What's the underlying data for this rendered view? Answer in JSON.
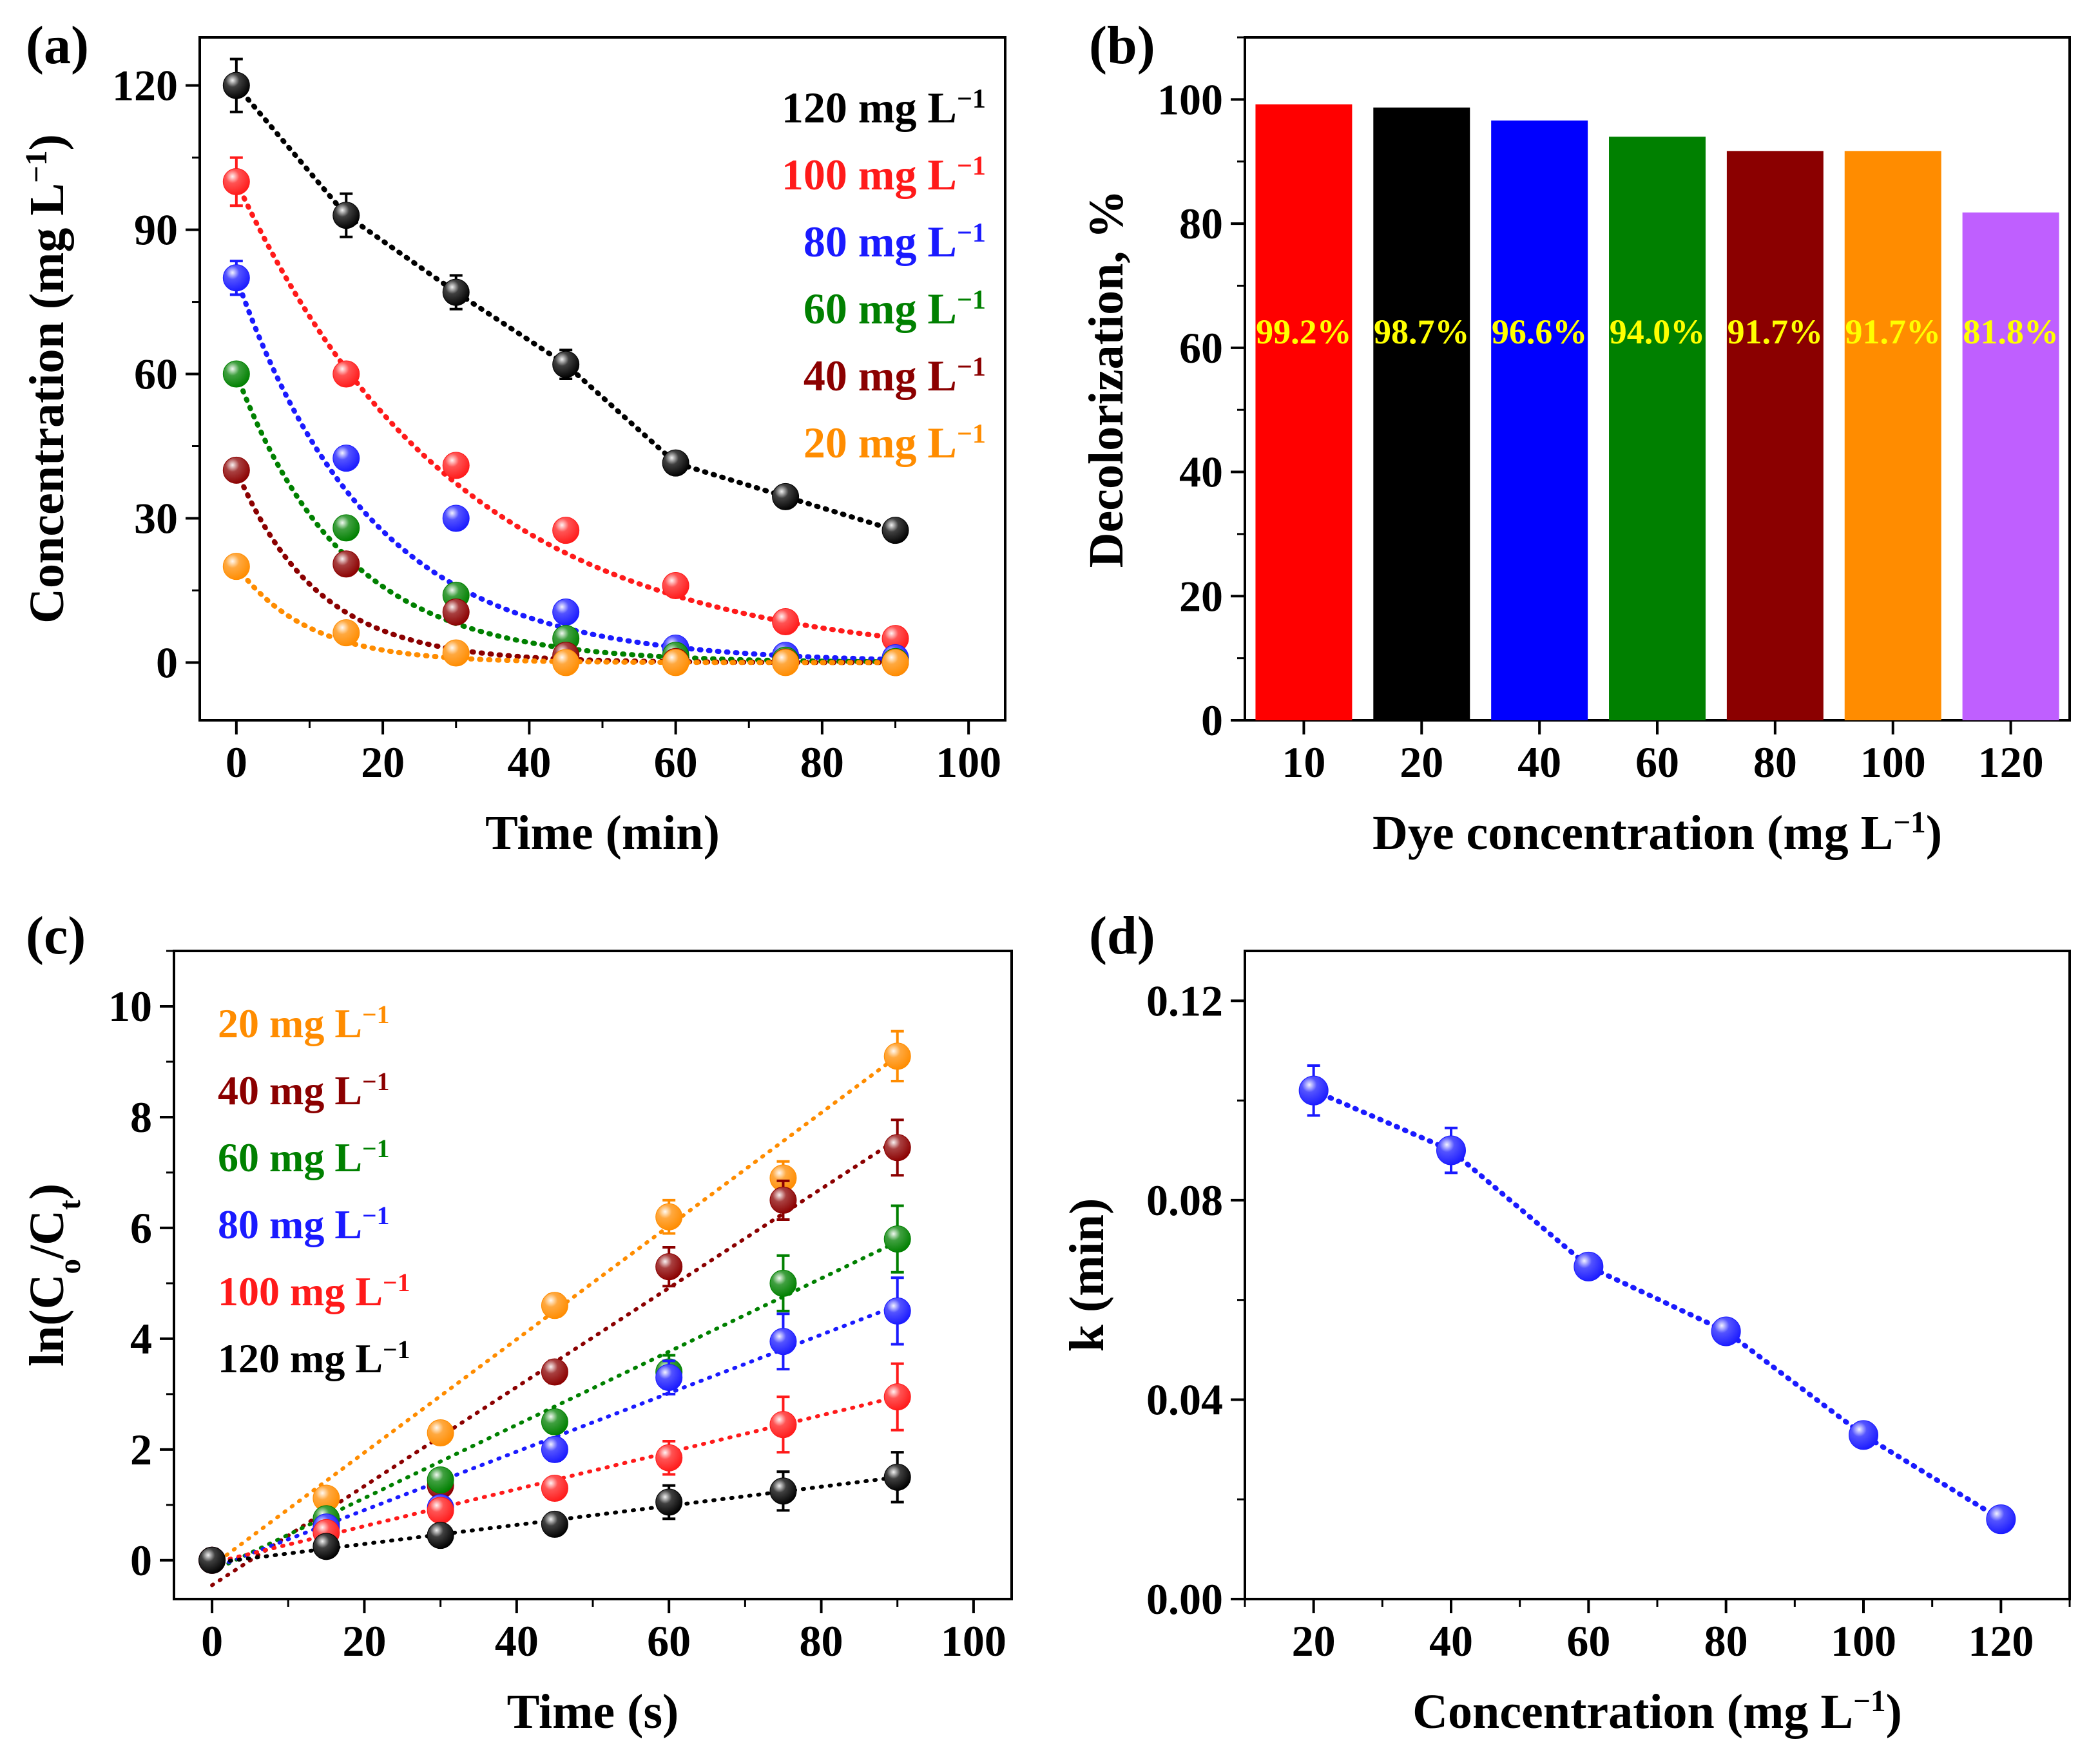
{
  "figure": {
    "panels": [
      {
        "id": "a",
        "label": "(a)",
        "chart_data": {
          "type": "scatter",
          "title": "",
          "xlabel": "Time (min)",
          "ylabel_main": "Concentration (mg L",
          "ylabel_sup": "−1",
          "ylabel_end": ")",
          "xlim": [
            -5,
            105
          ],
          "ylim": [
            -12,
            130
          ],
          "xticks": [
            0,
            20,
            40,
            60,
            80,
            100
          ],
          "yticks": [
            0,
            30,
            60,
            90,
            120
          ],
          "minor_x": 10,
          "minor_y": 15,
          "legend_position": "top-right",
          "series": [
            {
              "name": "120 mg L",
              "sup": "−1",
              "color": "#000000",
              "x": [
                0,
                15,
                30,
                45,
                60,
                75,
                90
              ],
              "y": [
                120,
                93,
                77,
                62,
                41.5,
                34.5,
                27.5
              ],
              "err": [
                5.5,
                4.5,
                3.5,
                3,
                1.5,
                1.5,
                1.5
              ],
              "fit": "dotted-line"
            },
            {
              "name": "100 mg L",
              "sup": "−1",
              "color": "#ff1a1a",
              "x": [
                0,
                15,
                30,
                45,
                60,
                75,
                90
              ],
              "y": [
                100,
                60,
                41,
                27.5,
                16,
                8.5,
                5
              ],
              "err": [
                5,
                2,
                1.5,
                1.5,
                1.5,
                1,
                1
              ],
              "fit": "exp",
              "fit_params": {
                "c0": 100,
                "k": 0.0329
              }
            },
            {
              "name": "80  mg L",
              "sup": "−1",
              "color": "#1a1aff",
              "x": [
                0,
                15,
                30,
                45,
                60,
                75,
                90
              ],
              "y": [
                80,
                42.5,
                30,
                10.5,
                3,
                1.5,
                1
              ],
              "err": [
                3.5,
                1.5,
                1.5,
                1.5,
                1,
                1,
                1
              ],
              "fit": "exp",
              "fit_params": {
                "c0": 80,
                "k": 0.0537
              }
            },
            {
              "name": "60  mg L",
              "sup": "−1",
              "color": "#008000",
              "x": [
                0,
                15,
                30,
                45,
                60,
                75,
                90
              ],
              "y": [
                60,
                28,
                14,
                5,
                1.5,
                0.5,
                0.2
              ],
              "err": [
                2,
                1.5,
                1.5,
                1,
                0.5,
                0.5,
                0.5
              ],
              "fit": "exp",
              "fit_params": {
                "c0": 60,
                "k": 0.0667
              }
            },
            {
              "name": "40  mg L",
              "sup": "−1",
              "color": "#8b0000",
              "x": [
                0,
                15,
                30,
                45,
                60,
                75,
                90
              ],
              "y": [
                40,
                20.5,
                10.5,
                1.5,
                0.2,
                0.1,
                0
              ],
              "err": [
                1.5,
                1.5,
                1.5,
                1,
                0.5,
                0.5,
                0.5
              ],
              "fit": "exp",
              "fit_params": {
                "c0": 40,
                "k": 0.0897
              }
            },
            {
              "name": "20  mg L",
              "sup": "−1",
              "color": "#ff8c00",
              "x": [
                0,
                15,
                30,
                45,
                60,
                75,
                90
              ],
              "y": [
                20,
                6.2,
                2,
                0,
                0,
                0,
                0
              ],
              "err": [
                1,
                0.5,
                0.5,
                0.5,
                0.5,
                0.5,
                0.5
              ],
              "fit": "exp",
              "fit_params": {
                "c0": 20,
                "k": 0.102
              }
            }
          ]
        }
      },
      {
        "id": "b",
        "label": "(b)",
        "chart_data": {
          "type": "bar",
          "title": "",
          "xlabel_main": "Dye concentration (mg L",
          "xlabel_sup": "−1",
          "xlabel_end": ")",
          "ylabel": "Decolorization, %",
          "ylim": [
            0,
            110
          ],
          "yticks": [
            0,
            20,
            40,
            60,
            80,
            100
          ],
          "minor_y": 10,
          "categories": [
            "10",
            "20",
            "40",
            "60",
            "80",
            "100",
            "120"
          ],
          "values": [
            99.2,
            98.7,
            96.6,
            94.0,
            91.7,
            91.7,
            81.8
          ],
          "colors": [
            "#ff0000",
            "#000000",
            "#0000ff",
            "#008000",
            "#8b0000",
            "#ff8c00",
            "#bf5fff"
          ],
          "labels": [
            "99.2%",
            "98.7%",
            "96.6%",
            "94.0%",
            "91.7%",
            "91.7%",
            "81.8%"
          ],
          "label_value": 63,
          "label_color": "#ffff00"
        }
      },
      {
        "id": "c",
        "label": "(c)",
        "chart_data": {
          "type": "scatter",
          "title": "",
          "xlabel": "Time (s)",
          "ylabel_pre": "ln(C",
          "ylabel_sub1": "o",
          "ylabel_mid": "/C",
          "ylabel_sub2": "t",
          "ylabel_end": ")",
          "xlim": [
            -5,
            105
          ],
          "ylim": [
            -0.7,
            11
          ],
          "xticks": [
            0,
            20,
            40,
            60,
            80,
            100
          ],
          "yticks": [
            0,
            2,
            4,
            6,
            8,
            10
          ],
          "minor_x": 10,
          "minor_y": 1,
          "legend_position": "top-left",
          "series": [
            {
              "name": "20  mg L",
              "sup": "−1",
              "color": "#ff8c00",
              "x": [
                0,
                15,
                30,
                45,
                60,
                75,
                90
              ],
              "y": [
                0,
                1.12,
                2.3,
                4.6,
                6.2,
                6.9,
                9.1
              ],
              "err": [
                0.1,
                0.15,
                0.15,
                0.2,
                0.3,
                0.3,
                0.45
              ],
              "fit_line": [
                [
                  0,
                  -0.1
                ],
                [
                  90,
                  9.1
                ]
              ]
            },
            {
              "name": "40  mg L",
              "sup": "−1",
              "color": "#8b0000",
              "x": [
                0,
                15,
                30,
                45,
                60,
                75,
                90
              ],
              "y": [
                0,
                0.65,
                1.35,
                3.4,
                5.3,
                6.5,
                7.45
              ],
              "err": [
                0.1,
                0.1,
                0.15,
                0.2,
                0.35,
                0.35,
                0.5
              ],
              "fit_line": [
                [
                  0,
                  -0.45
                ],
                [
                  90,
                  7.6
                ]
              ]
            },
            {
              "name": "60  mg L",
              "sup": "−1",
              "color": "#008000",
              "x": [
                0,
                15,
                30,
                45,
                60,
                75,
                90
              ],
              "y": [
                0,
                0.75,
                1.45,
                2.5,
                3.4,
                5.0,
                5.8
              ],
              "err": [
                0.1,
                0.1,
                0.15,
                0.2,
                0.3,
                0.5,
                0.6
              ],
              "fit_line": [
                [
                  0,
                  -0.2
                ],
                [
                  90,
                  5.75
                ]
              ]
            },
            {
              "name": "80  mg L",
              "sup": "−1",
              "color": "#1a1aff",
              "x": [
                0,
                15,
                30,
                45,
                60,
                75,
                90
              ],
              "y": [
                0,
                0.6,
                0.95,
                2.0,
                3.3,
                3.95,
                4.5
              ],
              "err": [
                0.1,
                0.1,
                0.15,
                0.2,
                0.3,
                0.5,
                0.6
              ],
              "fit_line": [
                [
                  0,
                  -0.15
                ],
                [
                  90,
                  4.6
                ]
              ]
            },
            {
              "name": "100 mg L",
              "sup": "−1",
              "color": "#ff1a1a",
              "x": [
                0,
                15,
                30,
                45,
                60,
                75,
                90
              ],
              "y": [
                0,
                0.5,
                0.9,
                1.3,
                1.85,
                2.45,
                2.95
              ],
              "err": [
                0.1,
                0.1,
                0.1,
                0.15,
                0.3,
                0.5,
                0.6
              ],
              "fit_line": [
                [
                  0,
                  -0.05
                ],
                [
                  90,
                  2.95
                ]
              ]
            },
            {
              "name": "120 mg L",
              "sup": "−1",
              "color": "#000000",
              "x": [
                0,
                15,
                30,
                45,
                60,
                75,
                90
              ],
              "y": [
                0,
                0.25,
                0.45,
                0.65,
                1.05,
                1.25,
                1.5
              ],
              "err": [
                0.1,
                0.1,
                0.1,
                0.1,
                0.3,
                0.35,
                0.45
              ],
              "fit_line": [
                [
                  0,
                  -0.05
                ],
                [
                  90,
                  1.5
                ]
              ]
            }
          ]
        }
      },
      {
        "id": "d",
        "label": "(d)",
        "chart_data": {
          "type": "scatter",
          "title": "",
          "xlabel_main": "Concentration (mg L",
          "xlabel_sup": "−1",
          "xlabel_end": ")",
          "ylabel": "k (min)",
          "xlim": [
            10,
            130
          ],
          "ylim": [
            0,
            0.13
          ],
          "xticks": [
            20,
            40,
            60,
            80,
            100,
            120
          ],
          "yticks": [
            0.0,
            0.04,
            0.08,
            0.12
          ],
          "ytick_labels": [
            "0.00",
            "0.04",
            "0.08",
            "0.12"
          ],
          "minor_x": 10,
          "minor_y": 0.02,
          "series": [
            {
              "name": "k",
              "color": "#1a1aff",
              "x": [
                20,
                40,
                60,
                80,
                100,
                120
              ],
              "y": [
                0.102,
                0.09,
                0.0667,
                0.0537,
                0.0329,
                0.016
              ],
              "err": [
                0.005,
                0.0045,
                0.002,
                0.0015,
                0.0015,
                0.001
              ],
              "fit": "dotted-line"
            }
          ]
        }
      }
    ]
  }
}
